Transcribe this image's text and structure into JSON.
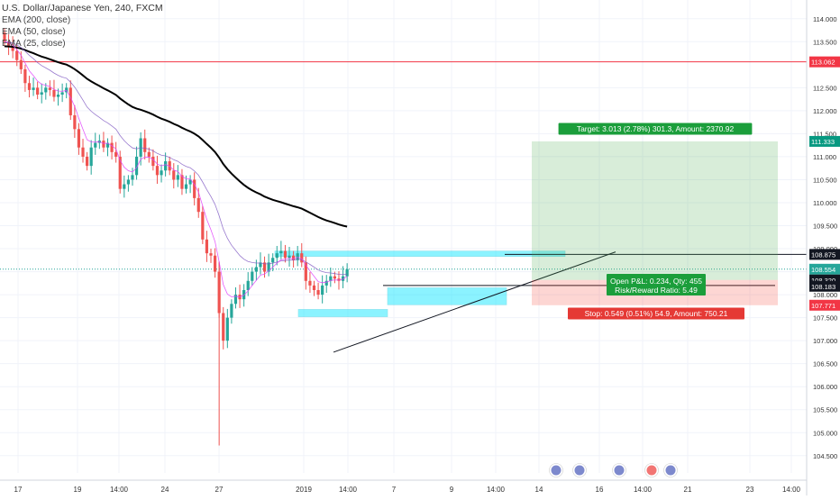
{
  "chart_data": {
    "type": "candlestick",
    "title": "U.S. Dollar/Japanese Yen, 240, FXCM",
    "indicators": [
      "EMA (200, close)",
      "EMA (50, close)",
      "EMA (25, close)"
    ],
    "y_ticks": [
      "114.000",
      "113.500",
      "112.500",
      "112.000",
      "111.500",
      "111.000",
      "110.500",
      "110.000",
      "109.500",
      "109.000",
      "108.500",
      "108.000",
      "107.500",
      "107.000",
      "106.500",
      "106.000",
      "105.500",
      "105.000",
      "104.500"
    ],
    "x_ticks": [
      "17",
      "19",
      "14:00",
      "24",
      "27",
      "2019",
      "14:00",
      "7",
      "9",
      "14:00",
      "14",
      "16",
      "14:00",
      "21",
      "23",
      "14:00"
    ],
    "ylim": [
      104.3,
      114.25
    ],
    "price_labels": [
      {
        "text": "113.062",
        "value": 113.062,
        "color": "#f23645"
      },
      {
        "text": "111.333",
        "value": 111.333,
        "color": "#089981"
      },
      {
        "text": "108.875",
        "value": 108.875,
        "color": "#131722"
      },
      {
        "text": "108.554",
        "value": 108.554,
        "color": "#26a69a"
      },
      {
        "text": "108.320",
        "value": 108.32,
        "color": "#131722"
      },
      {
        "text": "108.183",
        "value": 108.183,
        "color": "#131722"
      },
      {
        "text": "107.771",
        "value": 107.771,
        "color": "#f23645"
      }
    ],
    "horizontal_lines": [
      {
        "value": 113.062,
        "color": "#f23645"
      },
      {
        "value": 108.875,
        "color": "#131722"
      },
      {
        "value": 108.554,
        "color": "#26a69a",
        "dashed": true
      }
    ],
    "position": {
      "target_label": "Target: 3.013 (2.78%) 301.3, Amount: 2370.92",
      "pnl_label": "Open P&L: 0.234, Qty: 455",
      "ratio_label": "Risk/Reward Ratio: 5.49",
      "stop_label": "Stop: 0.549 (0.51%) 54.9, Amount: 750.21",
      "target": 111.333,
      "entry": 108.32,
      "stop": 107.771
    },
    "close_series": [
      113.5,
      113.4,
      113.3,
      113.1,
      112.9,
      112.6,
      112.45,
      112.5,
      112.35,
      112.4,
      112.5,
      112.45,
      112.3,
      112.35,
      112.4,
      112.5,
      111.9,
      111.6,
      111.2,
      111.0,
      110.8,
      111.2,
      111.3,
      111.35,
      111.2,
      111.3,
      111.1,
      111.0,
      110.3,
      110.4,
      110.5,
      110.6,
      111.0,
      111.4,
      111.1,
      111.0,
      110.8,
      110.6,
      110.7,
      110.9,
      110.7,
      110.5,
      110.6,
      110.3,
      110.4,
      110.5,
      110.1,
      109.8,
      109.2,
      108.9,
      108.85,
      108.5,
      107.6,
      107.0,
      107.5,
      107.8,
      108.0,
      107.9,
      108.1,
      108.3,
      108.5,
      108.6,
      108.7,
      108.5,
      108.7,
      108.8,
      108.9,
      108.95,
      108.8,
      108.85,
      108.75,
      108.9,
      108.7,
      108.3,
      108.2,
      108.1,
      108.0,
      108.2,
      108.3,
      108.4,
      108.35,
      108.3,
      108.4,
      108.554
    ]
  }
}
